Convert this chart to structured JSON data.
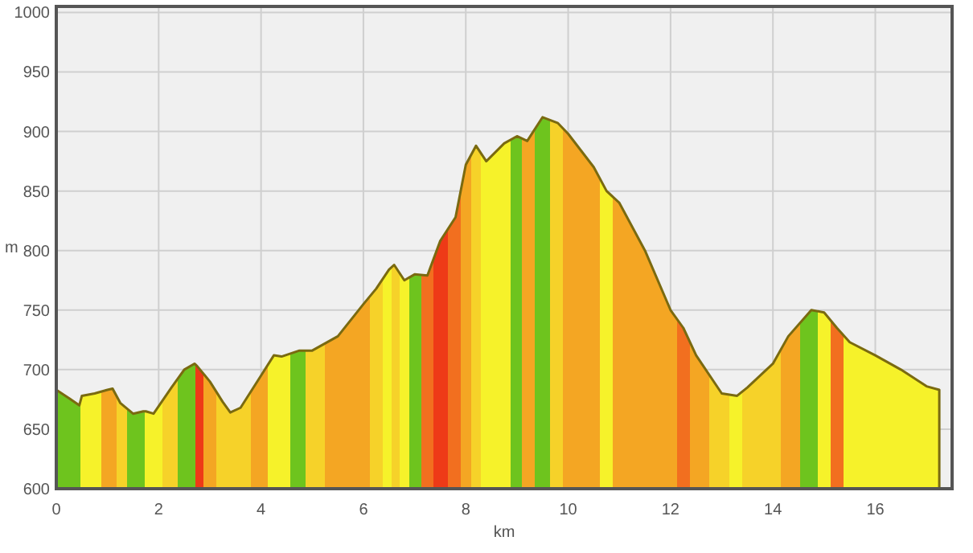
{
  "chart_data": {
    "type": "area",
    "xlabel": "km",
    "ylabel": "m",
    "x": [
      0,
      0.25,
      0.45,
      0.5,
      0.75,
      1.0,
      1.1,
      1.25,
      1.5,
      1.7,
      1.75,
      1.9,
      2.25,
      2.5,
      2.7,
      2.75,
      3.0,
      3.25,
      3.4,
      3.6,
      4.0,
      4.25,
      4.4,
      4.75,
      5.0,
      5.5,
      6.0,
      6.25,
      6.5,
      6.6,
      6.8,
      7.0,
      7.25,
      7.5,
      7.8,
      8.0,
      8.2,
      8.4,
      8.75,
      9.0,
      9.2,
      9.5,
      9.8,
      10.0,
      10.5,
      10.75,
      11.0,
      11.5,
      12.0,
      12.25,
      12.5,
      13.0,
      13.3,
      13.5,
      14.0,
      14.3,
      14.75,
      15.0,
      15.25,
      15.5,
      16.0,
      16.5,
      17.0,
      17.25
    ],
    "values": [
      683,
      676,
      670,
      678,
      680,
      683,
      684,
      672,
      663,
      665,
      665,
      663,
      685,
      700,
      705,
      703,
      690,
      673,
      664,
      668,
      695,
      712,
      711,
      716,
      716,
      728,
      755,
      768,
      784,
      788,
      775,
      780,
      779,
      808,
      828,
      872,
      888,
      875,
      890,
      896,
      892,
      912,
      907,
      898,
      870,
      850,
      840,
      800,
      750,
      735,
      712,
      680,
      678,
      685,
      705,
      728,
      750,
      748,
      735,
      723,
      712,
      700,
      686,
      683
    ],
    "colors": [
      "#6ec41e",
      "#6ec41e",
      "#6ec41e",
      "#f6f22a",
      "#f6f22a",
      "#f4a623",
      "#f4a623",
      "#f6d229",
      "#6ec41e",
      "#6ec41e",
      "#f6f22a",
      "#f6f22a",
      "#f6d229",
      "#6ec41e",
      "#6ec41e",
      "#ee3a17",
      "#f4a623",
      "#f6d229",
      "#f6d229",
      "#f6d229",
      "#f4a623",
      "#f6f22a",
      "#f6f22a",
      "#6ec41e",
      "#f6d229",
      "#f4a623",
      "#f4a623",
      "#f6d229",
      "#f6f22a",
      "#f6d229",
      "#f6f22a",
      "#6ec41e",
      "#f26f1f",
      "#ee3a17",
      "#f26f1f",
      "#f4a623",
      "#f6d229",
      "#f6f22a",
      "#f6f22a",
      "#6ec41e",
      "#f4a623",
      "#6ec41e",
      "#f6d229",
      "#f4a623",
      "#f4a623",
      "#f6f22a",
      "#f4a623",
      "#f4a623",
      "#f4a623",
      "#f26f1f",
      "#f4a623",
      "#f6d229",
      "#f6f22a",
      "#f6d229",
      "#f6d229",
      "#f4a623",
      "#6ec41e",
      "#f6f22a",
      "#f26f1f",
      "#f6f22a",
      "#f6f22a",
      "#f6f22a",
      "#f6f22a",
      "#f6f22a"
    ],
    "xlim": [
      0,
      17.5
    ],
    "ylim": [
      600,
      1005
    ],
    "xticks": [
      0,
      2,
      4,
      6,
      8,
      10,
      12,
      14,
      16
    ],
    "yticks": [
      600,
      650,
      700,
      750,
      800,
      850,
      900,
      950,
      1000
    ],
    "grid": true
  }
}
